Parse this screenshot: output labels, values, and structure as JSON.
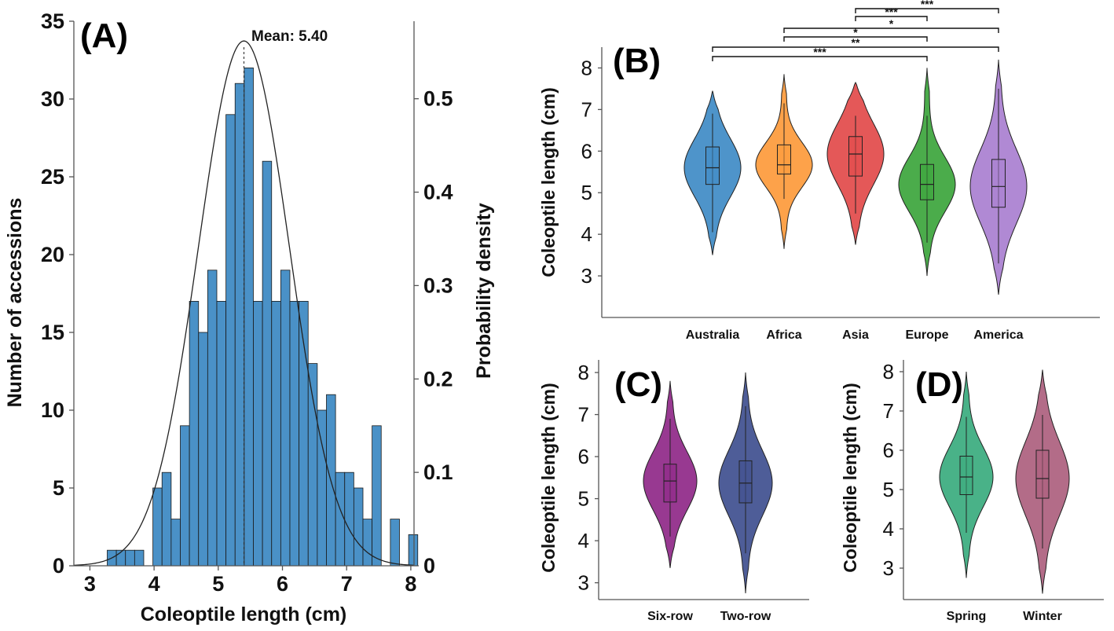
{
  "chart_data": {
    "histogram": {
      "type": "bar",
      "label": "(A)",
      "xlabel": "Coleoptile length (cm)",
      "ylabel": "Number of accessions",
      "y2label": "Probability density",
      "xlim": [
        2.75,
        8.05
      ],
      "ylim": [
        0,
        35
      ],
      "y2lim": [
        0,
        0.583
      ],
      "xticks": [
        "3",
        "4",
        "5",
        "6",
        "7",
        "8"
      ],
      "yticks": [
        "0",
        "5",
        "10",
        "15",
        "20",
        "25",
        "30",
        "35"
      ],
      "y2ticks": [
        "0",
        "0.1",
        "0.2",
        "0.3",
        "0.4",
        "0.5"
      ],
      "bin_start": 3.27,
      "bin_width": 0.1423,
      "counts": [
        1,
        1,
        1,
        1,
        0,
        5,
        6,
        3,
        9,
        17,
        15,
        19,
        17,
        29,
        31,
        32,
        17,
        26,
        17,
        19,
        17,
        17,
        13,
        10,
        11,
        6,
        6,
        5,
        3,
        9,
        0,
        3,
        0,
        2
      ],
      "mean": 5.4,
      "mean_label": "Mean: 5.40",
      "normal_sd": 0.71,
      "bar_color": "#4a91c7"
    },
    "region_violins": {
      "type": "violin",
      "label": "(B)",
      "ylabel": "Coleoptile length (cm)",
      "ylim": [
        2.0,
        8.5
      ],
      "yticks": [
        "3",
        "4",
        "5",
        "6",
        "7",
        "8"
      ],
      "categories": [
        "Australia",
        "Africa",
        "Asia",
        "Europe",
        "America"
      ],
      "colors": [
        "#3f8bc6",
        "#fd9a3b",
        "#e24a4a",
        "#3ca53c",
        "#a97fd0"
      ],
      "stats": [
        {
          "min": 3.5,
          "max": 7.45,
          "q1": 5.2,
          "median": 5.6,
          "q3": 6.1,
          "wlo": 4.05,
          "whi": 6.9
        },
        {
          "min": 3.65,
          "max": 7.85,
          "q1": 5.45,
          "median": 5.67,
          "q3": 6.15,
          "wlo": 4.85,
          "whi": 7.15
        },
        {
          "min": 3.75,
          "max": 7.65,
          "q1": 5.4,
          "median": 5.93,
          "q3": 6.35,
          "wlo": 4.5,
          "whi": 6.85
        },
        {
          "min": 3.0,
          "max": 8.0,
          "q1": 4.83,
          "median": 5.2,
          "q3": 5.68,
          "wlo": 3.8,
          "whi": 6.85
        },
        {
          "min": 2.55,
          "max": 8.2,
          "q1": 4.65,
          "median": 5.15,
          "q3": 5.8,
          "wlo": 3.3,
          "whi": 7.5
        }
      ],
      "significance": [
        {
          "from": "Asia",
          "to": "America",
          "label": "***"
        },
        {
          "from": "Asia",
          "to": "Europe",
          "label": "***"
        },
        {
          "from": "Africa",
          "to": "America",
          "label": "*"
        },
        {
          "from": "Africa",
          "to": "Europe",
          "label": "*"
        },
        {
          "from": "Australia",
          "to": "America",
          "label": "**"
        },
        {
          "from": "Australia",
          "to": "Europe",
          "label": "***"
        }
      ]
    },
    "rowtype_violins": {
      "type": "violin",
      "label": "(C)",
      "ylabel": "Coleoptile length (cm)",
      "ylim": [
        2.6,
        8.3
      ],
      "yticks": [
        "3",
        "4",
        "5",
        "6",
        "7",
        "8"
      ],
      "categories": [
        "Six-row",
        "Two-row"
      ],
      "colors": [
        "#8f2888",
        "#3f4f8f"
      ],
      "stats": [
        {
          "min": 3.35,
          "max": 7.8,
          "q1": 4.92,
          "median": 5.42,
          "q3": 5.82,
          "wlo": 4.1,
          "whi": 6.9
        },
        {
          "min": 2.75,
          "max": 8.0,
          "q1": 4.9,
          "median": 5.37,
          "q3": 5.9,
          "wlo": 3.7,
          "whi": 7.2
        }
      ]
    },
    "season_violins": {
      "type": "violin",
      "label": "(D)",
      "ylabel": "Coleoptile length (cm)",
      "ylim": [
        2.2,
        8.3
      ],
      "yticks": [
        "3",
        "4",
        "5",
        "6",
        "7",
        "8"
      ],
      "categories": [
        "Spring",
        "Winter"
      ],
      "colors": [
        "#3aab7e",
        "#ad5f7e"
      ],
      "stats": [
        {
          "min": 2.75,
          "max": 8.0,
          "q1": 4.87,
          "median": 5.32,
          "q3": 5.85,
          "wlo": 3.9,
          "whi": 6.85
        },
        {
          "min": 2.35,
          "max": 8.05,
          "q1": 4.78,
          "median": 5.28,
          "q3": 6.0,
          "wlo": 3.5,
          "whi": 6.9
        }
      ]
    }
  }
}
